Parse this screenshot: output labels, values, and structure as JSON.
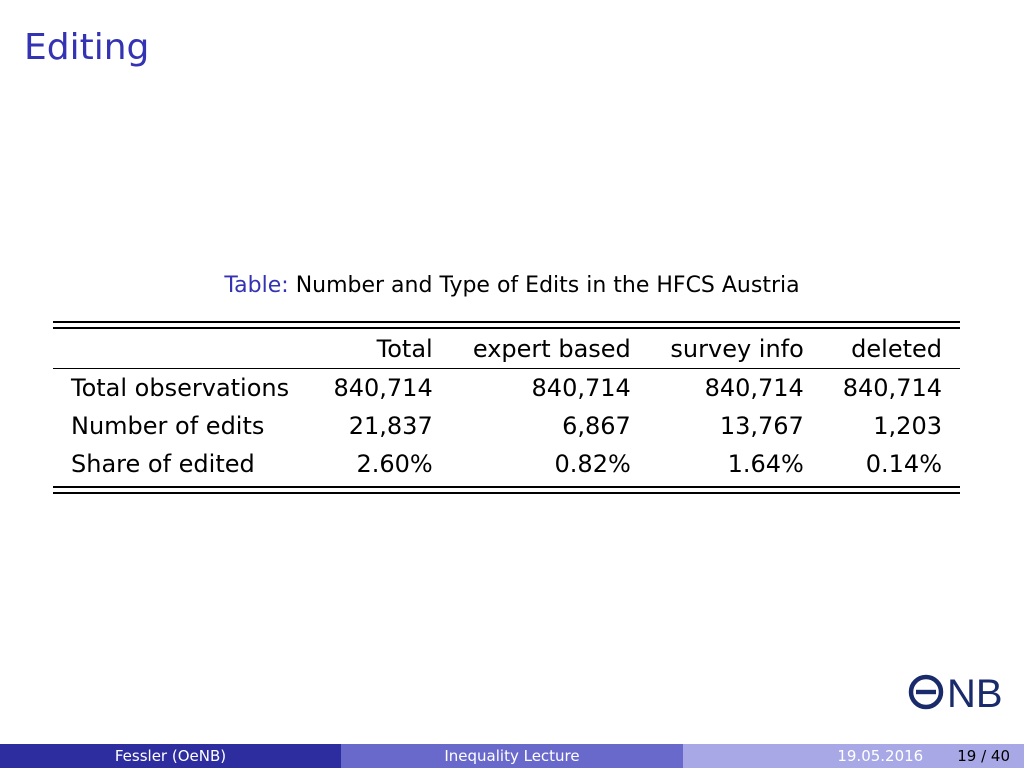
{
  "slide": {
    "title": "Editing"
  },
  "caption": {
    "label": "Table:",
    "text": "Number and Type of Edits in the HFCS Austria"
  },
  "table": {
    "columns": [
      "",
      "Total",
      "expert based",
      "survey info",
      "deleted"
    ],
    "rows": [
      {
        "label": "Total observations",
        "values": [
          "840,714",
          "840,714",
          "840,714",
          "840,714"
        ]
      },
      {
        "label": "Number of edits",
        "values": [
          "21,837",
          "6,867",
          "13,767",
          "1,203"
        ]
      },
      {
        "label": "Share of edited",
        "values": [
          "2.60%",
          "0.82%",
          "1.64%",
          "0.14%"
        ]
      }
    ]
  },
  "logo": {
    "icon": "onb-logo-icon",
    "text": "NB"
  },
  "footer": {
    "author": "Fessler (OeNB)",
    "title": "Inequality Lecture",
    "date": "19.05.2016",
    "page": "19 / 40"
  },
  "colors": {
    "title": "#3333b3",
    "footer_dark": "#2d2da0",
    "footer_mid": "#6969cc",
    "footer_light": "#a8a8e6",
    "logo": "#1a2b6b"
  }
}
